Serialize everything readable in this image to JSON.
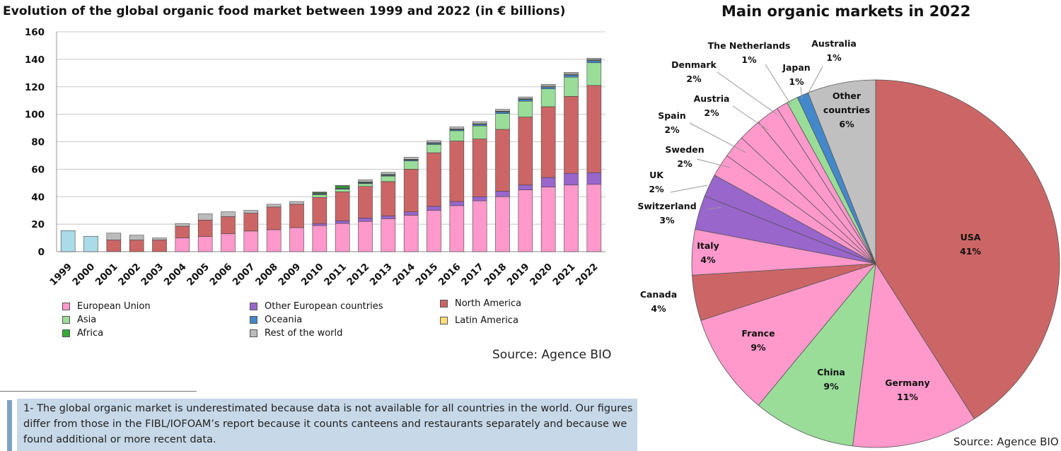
{
  "left_title": "Evolution of the global organic food market between 1999 and 2022 (in € billions)",
  "right_title": "Main organic markets in 2022",
  "source_left": "Source: Agence BIO",
  "source_right": "Source: Agence BIO",
  "footnote": "1- The global organic market is underestimated because data is not available for all countries in the world. Our figures differ from those in the FIBL/IOFOAM’s report because it counts canteens and restaurants separately and because we found additional or more recent data.",
  "legend": [
    {
      "label": "European Union",
      "color": "#ff99cc"
    },
    {
      "label": "Other European countries",
      "color": "#9966cc"
    },
    {
      "label": "North America",
      "color": "#cc6666"
    },
    {
      "label": "Asia",
      "color": "#99dd99"
    },
    {
      "label": "Oceania",
      "color": "#4488cc"
    },
    {
      "label": "Latin America",
      "color": "#ffdd77"
    },
    {
      "label": "Africa",
      "color": "#33aa33"
    },
    {
      "label": "Rest of the world",
      "color": "#bbbbbb"
    }
  ],
  "chart_data": [
    {
      "type": "bar",
      "stacked": true,
      "title": "Evolution of the global organic food market between 1999 and 2022 (in € billions)",
      "categories": [
        "1999",
        "2000",
        "2001",
        "2002",
        "2003",
        "2004",
        "2005",
        "2006",
        "2007",
        "2008",
        "2009",
        "2010",
        "2011",
        "2012",
        "2013",
        "2014",
        "2015",
        "2016",
        "2017",
        "2018",
        "2019",
        "2020",
        "2021",
        "2022"
      ],
      "ylim": [
        0,
        160
      ],
      "yticks": [
        0,
        20,
        40,
        60,
        80,
        100,
        120,
        140,
        160
      ],
      "grid": true,
      "series": [
        {
          "name": "European Union",
          "color": "#ff99cc",
          "values": [
            0,
            0,
            0,
            0,
            0,
            10,
            11,
            13,
            15,
            16,
            17.5,
            19,
            20.5,
            22,
            24,
            26.5,
            30,
            33.5,
            37,
            40,
            45,
            47,
            48.5,
            49
          ]
        },
        {
          "name": "Other European countries",
          "color": "#9966cc",
          "values": [
            0,
            0,
            0,
            0,
            0,
            0,
            0,
            0,
            0,
            0,
            0,
            1.5,
            2,
            2.5,
            2,
            2.5,
            3,
            3,
            3,
            4,
            3.5,
            7,
            8.5,
            8.5
          ]
        },
        {
          "name": "North America",
          "color": "#cc6666",
          "values": [
            0,
            0,
            8.5,
            8.5,
            8.5,
            8.5,
            12,
            12.5,
            13,
            16.5,
            17,
            19,
            21,
            23,
            25,
            31,
            39,
            44,
            42,
            45,
            49.5,
            51.5,
            56,
            63.5
          ]
        },
        {
          "name": "Asia",
          "color": "#99dd99",
          "values": [
            0,
            0,
            0,
            0,
            0,
            0,
            0,
            0,
            0,
            0,
            0,
            2,
            2,
            2,
            4,
            6,
            6,
            7.5,
            9.5,
            11.5,
            11.5,
            13,
            14,
            16.5
          ]
        },
        {
          "name": "Oceania",
          "color": "#4488cc",
          "values": [
            0,
            0,
            0,
            0,
            0,
            0,
            0,
            0,
            0,
            0,
            0,
            0.5,
            0.5,
            0.5,
            0.5,
            0.7,
            0.8,
            0.8,
            1,
            1.2,
            1.2,
            1.3,
            1.5,
            1.5
          ]
        },
        {
          "name": "Latin America",
          "color": "#ffdd77",
          "values": [
            0,
            0,
            0,
            0,
            0,
            0,
            0,
            0,
            0,
            0,
            0,
            0.3,
            0.3,
            0.3,
            0.3,
            0.3,
            0.3,
            0.3,
            0.4,
            0.4,
            0.4,
            0.5,
            0.5,
            0.5
          ]
        },
        {
          "name": "Africa",
          "color": "#33aa33",
          "values": [
            0,
            0,
            0,
            0,
            0,
            0,
            0,
            0,
            0,
            0,
            0,
            0.7,
            1.5,
            0.5,
            0.4,
            0.2,
            0.2,
            0.2,
            0.2,
            0.2,
            0.2,
            0.2,
            0.2,
            0.2
          ]
        },
        {
          "name": "Rest of the world",
          "color": "#bbbbbb",
          "values": [
            15.3,
            11.2,
            5,
            3.5,
            1.5,
            2,
            4.5,
            3.5,
            2,
            2,
            2,
            0.5,
            0.4,
            1.5,
            1.5,
            1.5,
            1.5,
            1.5,
            1.5,
            1.3,
            1.3,
            1.3,
            1.3,
            1.1
          ]
        }
      ],
      "first_years_color": "#aadbe8"
    },
    {
      "type": "pie",
      "title": "Main organic markets in 2022",
      "slices": [
        {
          "label": "USA",
          "value": 41,
          "display": "41%",
          "color": "#cc6666"
        },
        {
          "label": "Germany",
          "value": 11,
          "display": "11%",
          "color": "#ff99cc"
        },
        {
          "label": "China",
          "value": 9,
          "display": "9%",
          "color": "#99dd99"
        },
        {
          "label": "France",
          "value": 9,
          "display": "9%",
          "color": "#ff99cc"
        },
        {
          "label": "Canada",
          "value": 4,
          "display": "4%",
          "color": "#cc6666"
        },
        {
          "label": "Italy",
          "value": 4,
          "display": "4%",
          "color": "#ff99cc"
        },
        {
          "label": "Switzerland",
          "value": 3,
          "display": "3%",
          "color": "#9966cc"
        },
        {
          "label": "UK",
          "value": 2,
          "display": "2%",
          "color": "#9966cc"
        },
        {
          "label": "Sweden",
          "value": 2,
          "display": "2%",
          "color": "#ff99cc"
        },
        {
          "label": "Spain",
          "value": 2,
          "display": "2%",
          "color": "#ff99cc"
        },
        {
          "label": "Austria",
          "value": 2,
          "display": "2%",
          "color": "#ff99cc"
        },
        {
          "label": "Denmark",
          "value": 2,
          "display": "2%",
          "color": "#ff99cc"
        },
        {
          "label": "The Netherlands",
          "value": 1,
          "display": "1%",
          "color": "#ff99cc"
        },
        {
          "label": "Japan",
          "value": 1,
          "display": "1%",
          "color": "#99dd99"
        },
        {
          "label": "Australia",
          "value": 1,
          "display": "1%",
          "color": "#4488cc"
        },
        {
          "label": "Other countries",
          "value": 6,
          "display": "6%",
          "color": "#c0c0c0"
        }
      ]
    }
  ]
}
